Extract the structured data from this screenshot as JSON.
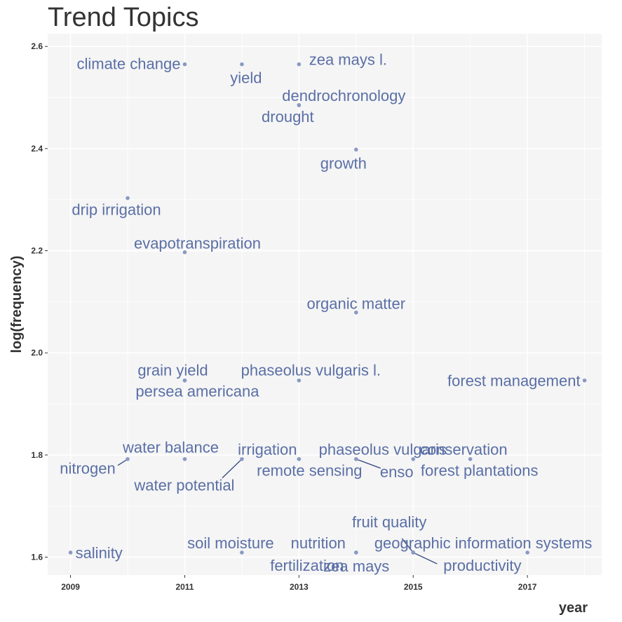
{
  "chart_data": {
    "type": "scatter",
    "title": "Trend Topics",
    "xlabel": "year",
    "ylabel": "log(frequency)",
    "xlim": [
      2008.6,
      2018.3
    ],
    "ylim": [
      1.565,
      2.625
    ],
    "x_ticks": [
      2009,
      2011,
      2013,
      2015,
      2017
    ],
    "y_ticks": [
      1.6,
      1.8,
      2.0,
      2.2,
      2.4,
      2.6
    ],
    "y_tick_labels": [
      "1.6",
      "1.8",
      "2.0",
      "2.2",
      "2.4",
      "2.6"
    ],
    "grid": true,
    "colors": {
      "point": "#8a9ac4",
      "label": "#5a6fa6",
      "panel": "#f5f5f5",
      "grid": "#ffffff"
    },
    "points": [
      {
        "label": "climate change",
        "x": 2011,
        "y": 2.565
      },
      {
        "label": "yield",
        "x": 2012,
        "y": 2.565
      },
      {
        "label": "zea mays l.",
        "x": 2013,
        "y": 2.565
      },
      {
        "label": "dendrochronology",
        "x": 2013,
        "y": 2.485
      },
      {
        "label": "drought",
        "x": 2013,
        "y": 2.485
      },
      {
        "label": "growth",
        "x": 2014,
        "y": 2.398
      },
      {
        "label": "drip irrigation",
        "x": 2010,
        "y": 2.303
      },
      {
        "label": "evapotranspiration",
        "x": 2011,
        "y": 2.197
      },
      {
        "label": "organic matter",
        "x": 2014,
        "y": 2.079
      },
      {
        "label": "grain yield",
        "x": 2011,
        "y": 1.946
      },
      {
        "label": "persea americana",
        "x": 2011,
        "y": 1.946
      },
      {
        "label": "phaseolus vulgaris l.",
        "x": 2013,
        "y": 1.946
      },
      {
        "label": "forest management",
        "x": 2018,
        "y": 1.946
      },
      {
        "label": "nitrogen",
        "x": 2010,
        "y": 1.792
      },
      {
        "label": "water balance",
        "x": 2011,
        "y": 1.792
      },
      {
        "label": "water potential",
        "x": 2012,
        "y": 1.792
      },
      {
        "label": "irrigation",
        "x": 2013,
        "y": 1.792
      },
      {
        "label": "remote sensing",
        "x": 2013,
        "y": 1.792
      },
      {
        "label": "phaseolus vulgaris",
        "x": 2014,
        "y": 1.792
      },
      {
        "label": "enso",
        "x": 2014,
        "y": 1.792
      },
      {
        "label": "conservation",
        "x": 2015,
        "y": 1.792
      },
      {
        "label": "forest plantations",
        "x": 2016,
        "y": 1.792
      },
      {
        "label": "salinity",
        "x": 2009,
        "y": 1.609
      },
      {
        "label": "soil moisture",
        "x": 2012,
        "y": 1.609
      },
      {
        "label": "nutrition",
        "x": 2014,
        "y": 1.609
      },
      {
        "label": "fertilization",
        "x": 2014,
        "y": 1.609
      },
      {
        "label": "fruit quality",
        "x": 2015,
        "y": 1.609
      },
      {
        "label": "zea mays",
        "x": 2015,
        "y": 1.609
      },
      {
        "label": "productivity",
        "x": 2015,
        "y": 1.609
      },
      {
        "label": "geographic information systems",
        "x": 2017,
        "y": 1.609
      }
    ]
  }
}
